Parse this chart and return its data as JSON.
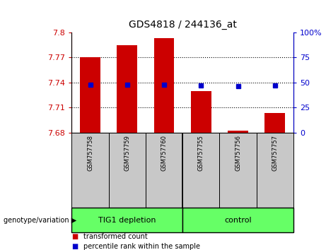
{
  "title": "GDS4818 / 244136_at",
  "samples": [
    "GSM757758",
    "GSM757759",
    "GSM757760",
    "GSM757755",
    "GSM757756",
    "GSM757757"
  ],
  "red_values": [
    7.77,
    7.785,
    7.793,
    7.73,
    7.682,
    7.703
  ],
  "blue_percentiles": [
    48,
    48,
    48,
    47,
    46,
    47
  ],
  "ymin": 7.68,
  "ymax": 7.8,
  "yticks": [
    7.68,
    7.71,
    7.74,
    7.77,
    7.8
  ],
  "ytick_labels": [
    "7.68",
    "7.71",
    "7.74",
    "7.77",
    "7.8"
  ],
  "y2min": 0,
  "y2max": 100,
  "y2ticks": [
    0,
    25,
    50,
    75,
    100
  ],
  "y2tick_labels": [
    "0",
    "25",
    "50",
    "75",
    "100%"
  ],
  "bar_bottom": 7.68,
  "bar_color": "#CC0000",
  "dot_color": "#0000CC",
  "bar_width": 0.55,
  "group_label": "genotype/variation",
  "group1_name": "TIG1 depletion",
  "group2_name": "control",
  "group_color": "#66FF66",
  "sample_box_color": "#C8C8C8",
  "legend_red": "transformed count",
  "legend_blue": "percentile rank within the sample",
  "title_color": "#000000",
  "left_axis_color": "#CC0000",
  "right_axis_color": "#0000CC",
  "grid_color": "black",
  "grid_linestyle": ":",
  "grid_linewidth": 0.8
}
